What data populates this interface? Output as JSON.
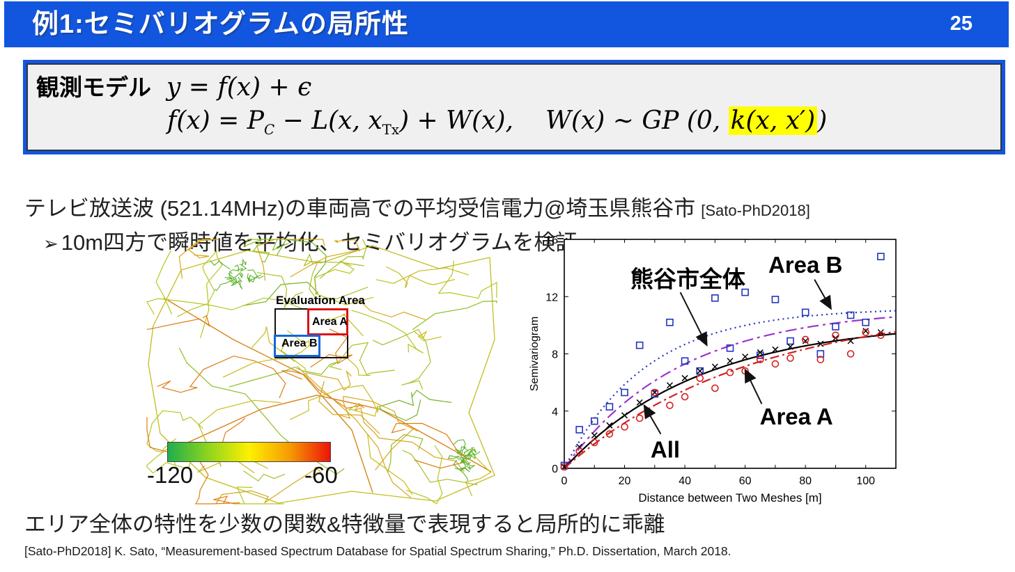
{
  "header": {
    "title": "例1:セミバリオグラムの局所性",
    "page_number": "25"
  },
  "model_box": {
    "label": "観測モデル",
    "eq1": "y = f(x) + ϵ",
    "eq2": {
      "p1": "f(x) = P",
      "sub1": "C",
      "p2": " − L(x, x",
      "sub2": "Tx",
      "p3": ") + W(x),",
      "p4": "W(x) ∼ GP",
      "p5": " (0, ",
      "highlight": "k(x, x′)",
      "p6": ")"
    }
  },
  "body": {
    "line1": "テレビ放送波 (521.14MHz)の車両高での平均受信電力@埼玉県熊谷市",
    "line1_ref": "[Sato-PhD2018]",
    "bullet": "➢",
    "line2": "10m四方で瞬時値を平均化、セミバリオグラムを検証",
    "conclusion": "エリア全体の特性を少数の関数&特徴量で表現すると局所的に乖離",
    "citation": "[Sato-PhD2018] K. Sato, “Measurement-based Spectrum Database for Spatial Spectrum Sharing,” Ph.D. Dissertation, March 2018."
  },
  "map": {
    "evaluation_area_label": "Evaluation Area",
    "area_a_label": "Area A",
    "area_b_label": "Area B",
    "colorbar": {
      "min_label": "-120",
      "max_label": "-60",
      "colors": [
        "#1fae4d",
        "#8fd41e",
        "#fdf000",
        "#f69b02",
        "#ee1309"
      ]
    }
  },
  "chart_data": {
    "type": "line",
    "title": "",
    "xlabel": "Distance between Two Meshes [m]",
    "ylabel": "Semivariogram",
    "xlim": [
      0,
      110
    ],
    "ylim": [
      0,
      16
    ],
    "xticks": [
      0,
      20,
      40,
      60,
      80,
      100
    ],
    "yticks": [
      0,
      4,
      8,
      12,
      16
    ],
    "grid": false,
    "curve_model": "y = sill * (1 - exp(-x / range))",
    "series": [
      {
        "name": "Area B fit",
        "kind": "curve",
        "color": "#2233bb",
        "dash": "2 5",
        "sill": 11.2,
        "range": 27
      },
      {
        "name": "熊谷市全体 fit",
        "kind": "curve",
        "color": "#9a35cf",
        "dash": "16 6 4 6",
        "sill": 11.2,
        "range": 38
      },
      {
        "name": "All fit",
        "kind": "curve",
        "color": "#000000",
        "dash": "",
        "sill": 10.3,
        "range": 45
      },
      {
        "name": "Area A fit",
        "kind": "curve",
        "color": "#d42020",
        "dash": "13 5 3 5",
        "sill": 11.5,
        "range": 62
      },
      {
        "name": "Area B data",
        "kind": "scatter",
        "marker": "square",
        "color": "#2233bb",
        "x": [
          0,
          5,
          10,
          15,
          20,
          25,
          30,
          35,
          40,
          45,
          50,
          55,
          60,
          65,
          70,
          75,
          80,
          85,
          90,
          95,
          100,
          105
        ],
        "y": [
          0.2,
          2.7,
          3.3,
          4.3,
          5.3,
          8.6,
          5.2,
          10.2,
          7.5,
          6.8,
          11.9,
          8.4,
          12.3,
          7.9,
          11.8,
          8.9,
          10.9,
          8.0,
          9.9,
          10.7,
          10.2,
          14.8
        ]
      },
      {
        "name": "All data",
        "kind": "scatter",
        "marker": "x",
        "color": "#000000",
        "x": [
          0,
          5,
          10,
          15,
          20,
          25,
          30,
          35,
          40,
          45,
          50,
          55,
          60,
          65,
          70,
          75,
          80,
          85,
          90,
          95,
          100,
          105
        ],
        "y": [
          0.1,
          1.5,
          2.3,
          3.0,
          3.7,
          4.6,
          5.3,
          5.8,
          6.3,
          6.8,
          7.1,
          7.5,
          7.8,
          8.1,
          8.3,
          8.5,
          8.9,
          8.7,
          9.1,
          8.9,
          9.6,
          9.5
        ]
      },
      {
        "name": "Area A data",
        "kind": "scatter",
        "marker": "circle",
        "color": "#d42020",
        "x": [
          0,
          5,
          10,
          15,
          20,
          25,
          30,
          35,
          40,
          45,
          50,
          55,
          60,
          65,
          70,
          75,
          80,
          85,
          90,
          95,
          100,
          105
        ],
        "y": [
          0.1,
          1.2,
          1.8,
          2.4,
          2.9,
          3.5,
          5.3,
          4.4,
          5.0,
          6.3,
          5.6,
          6.7,
          6.8,
          7.6,
          7.3,
          7.7,
          9.0,
          7.6,
          9.3,
          8.0,
          9.5,
          9.3
        ]
      }
    ],
    "annotations": [
      {
        "text": "熊谷市全体",
        "text_x": 41,
        "text_y": 13.2,
        "arrow_from": [
          38.5,
          12.3
        ],
        "arrow_to": [
          47.3,
          8.6
        ]
      },
      {
        "text": "Area B",
        "text_x": 80,
        "text_y": 14.2,
        "arrow_from": [
          83,
          13.2
        ],
        "arrow_to": [
          88.5,
          11.15
        ]
      },
      {
        "text": "Area A",
        "text_x": 77,
        "text_y": 3.6,
        "arrow_from": [
          65.5,
          4.5
        ],
        "arrow_to": [
          60,
          6.9
        ]
      },
      {
        "text": "All",
        "text_x": 33.5,
        "text_y": 1.3,
        "arrow_from": [
          32,
          2.4
        ],
        "arrow_to": [
          26.5,
          4.4
        ]
      }
    ]
  }
}
